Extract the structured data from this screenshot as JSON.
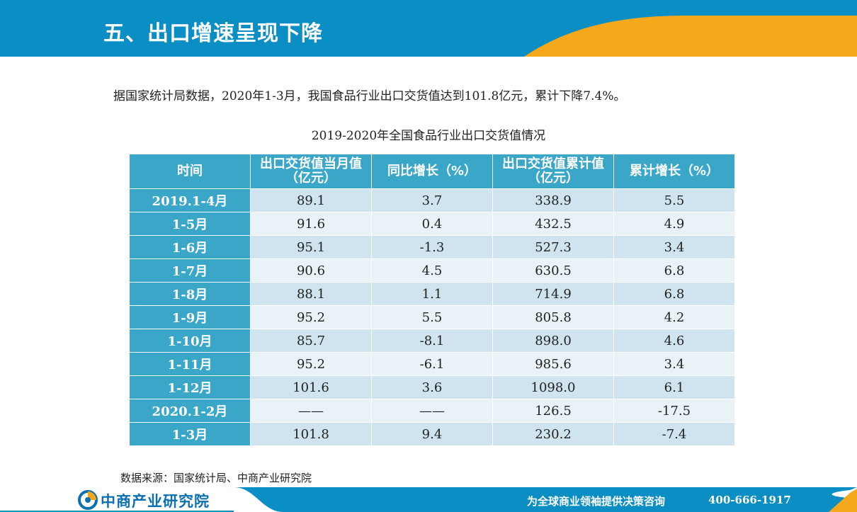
{
  "header": {
    "title": "五、出口增速呈现下降"
  },
  "intro": {
    "text": "据国家统计局数据，2020年1-3月，我国食品行业出口交货值达到101.8亿元，累计下降7.4%。"
  },
  "table": {
    "title": "2019-2020年全国食品行业出口交货值情况",
    "columns": [
      "时间",
      "出口交货值当月值（亿元）",
      "同比增长（%）",
      "出口交货值累计值（亿元）",
      "累计增长（%）"
    ],
    "rows": [
      {
        "period": "2019.1-4月",
        "monthly": "89.1",
        "yoy": "3.7",
        "cumulative": "338.9",
        "cum_growth": "5.5"
      },
      {
        "period": "1-5月",
        "monthly": "91.6",
        "yoy": "0.4",
        "cumulative": "432.5",
        "cum_growth": "4.9"
      },
      {
        "period": "1-6月",
        "monthly": "95.1",
        "yoy": "-1.3",
        "cumulative": "527.3",
        "cum_growth": "3.4"
      },
      {
        "period": "1-7月",
        "monthly": "90.6",
        "yoy": "4.5",
        "cumulative": "630.5",
        "cum_growth": "6.8"
      },
      {
        "period": "1-8月",
        "monthly": "88.1",
        "yoy": "1.1",
        "cumulative": "714.9",
        "cum_growth": "6.8"
      },
      {
        "period": "1-9月",
        "monthly": "95.2",
        "yoy": "5.5",
        "cumulative": "805.8",
        "cum_growth": "4.2"
      },
      {
        "period": "1-10月",
        "monthly": "85.7",
        "yoy": "-8.1",
        "cumulative": "898.0",
        "cum_growth": "4.6"
      },
      {
        "period": "1-11月",
        "monthly": "95.2",
        "yoy": "-6.1",
        "cumulative": "985.6",
        "cum_growth": "3.4"
      },
      {
        "period": "1-12月",
        "monthly": "101.6",
        "yoy": "3.6",
        "cumulative": "1098.0",
        "cum_growth": "6.1"
      },
      {
        "period": "2020.1-2月",
        "monthly": "——",
        "yoy": "——",
        "cumulative": "126.5",
        "cum_growth": "-17.5"
      },
      {
        "period": "1-3月",
        "monthly": "101.8",
        "yoy": "9.4",
        "cumulative": "230.2",
        "cum_growth": "-7.4"
      }
    ]
  },
  "source": {
    "text": "数据来源：国家统计局、中商产业研究院"
  },
  "footer": {
    "logo_text": "中商产业研究院",
    "slogan": "为全球商业领袖提供决策咨询",
    "phone": "400-666-1917"
  },
  "colors": {
    "header_blue": "#0b8ec4",
    "accent_orange": "#f6a81c",
    "table_header": "#3aa7c8",
    "row_odd": "#cfe4ee",
    "row_even": "#e8f2f7"
  }
}
